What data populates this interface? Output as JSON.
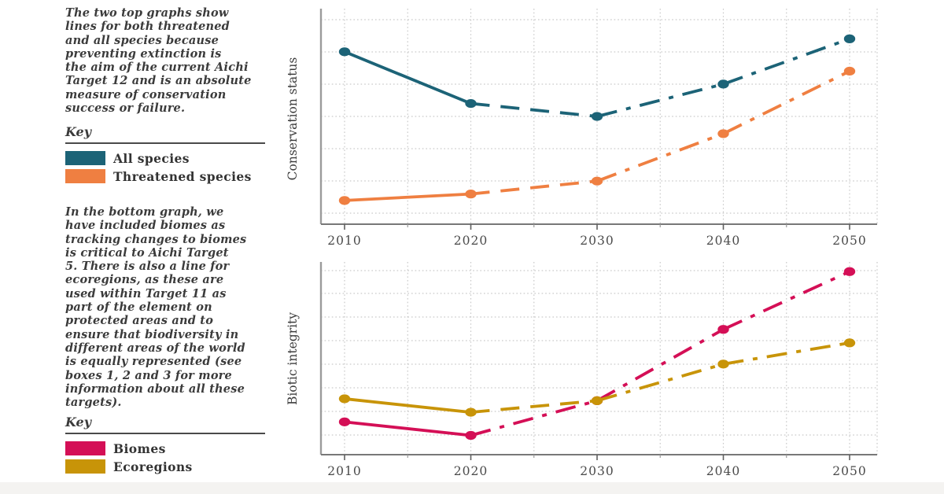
{
  "page": {
    "background": "#ffffff",
    "footer_bar_color": "#f4f3f1"
  },
  "sidebar": {
    "intro_top": [
      "The two top graphs show",
      "lines for both threatened",
      "and all species because",
      "preventing extinction is",
      "the aim of the current Aichi",
      "Target 12 and is an absolute",
      "measure of conservation",
      "success or failure."
    ],
    "key1": {
      "title": "Key",
      "items": [
        {
          "label": "All species",
          "color": "#1c6377"
        },
        {
          "label": "Threatened species",
          "color": "#ef7f41"
        }
      ]
    },
    "intro_bottom": [
      "In the bottom graph, we",
      "have included biomes as",
      "tracking changes to biomes",
      "is critical to Aichi Target",
      "5. There is also a line for",
      "ecoregions, as these are",
      "used within Target 11 as",
      "part of the element on",
      "protected areas and to",
      "ensure that biodiversity in",
      "different areas of the world",
      "is equally represented (see",
      "boxes 1, 2 and 3 for more",
      "information about all these",
      "targets)."
    ],
    "key2": {
      "title": "Key",
      "items": [
        {
          "label": "Biomes",
          "color": "#d40f56"
        },
        {
          "label": "Ecoregions",
          "color": "#c89408"
        }
      ]
    }
  },
  "chart_data": [
    {
      "type": "line",
      "title": "",
      "xlabel": "",
      "ylabel": "Conservation status",
      "x": [
        2010,
        2020,
        2030,
        2040,
        2050
      ],
      "xticks": [
        "2010",
        "2020",
        "2030",
        "2040",
        "2050"
      ],
      "ylim": [
        0,
        1
      ],
      "yticks": [],
      "grid": true,
      "legend_position": "left-panel",
      "series": [
        {
          "name": "All species",
          "color": "#1c6377",
          "values": [
            0.8,
            0.56,
            0.5,
            0.65,
            0.86
          ],
          "segment_styles": [
            "solid",
            "dashed",
            "dashdot",
            "dashdot"
          ]
        },
        {
          "name": "Threatened species",
          "color": "#ef7f41",
          "values": [
            0.11,
            0.14,
            0.2,
            0.42,
            0.71
          ],
          "segment_styles": [
            "solid",
            "dashed",
            "dashdot",
            "dashdot"
          ]
        }
      ]
    },
    {
      "type": "line",
      "title": "",
      "xlabel": "",
      "ylabel": "Biotic integrity",
      "x": [
        2010,
        2020,
        2030,
        2040,
        2050
      ],
      "xticks": [
        "2010",
        "2020",
        "2030",
        "2040",
        "2050"
      ],
      "ylim": [
        0,
        1
      ],
      "yticks": [],
      "grid": true,
      "legend_position": "left-panel",
      "series": [
        {
          "name": "Biomes",
          "color": "#d40f56",
          "values": [
            0.17,
            0.1,
            0.28,
            0.65,
            0.95
          ],
          "segment_styles": [
            "solid",
            "dashdot",
            "dashdot",
            "dashdot"
          ]
        },
        {
          "name": "Ecoregions",
          "color": "#c89408",
          "values": [
            0.29,
            0.22,
            0.28,
            0.47,
            0.58
          ],
          "segment_styles": [
            "solid",
            "dashed",
            "dashdot",
            "dashdot"
          ]
        }
      ]
    }
  ]
}
